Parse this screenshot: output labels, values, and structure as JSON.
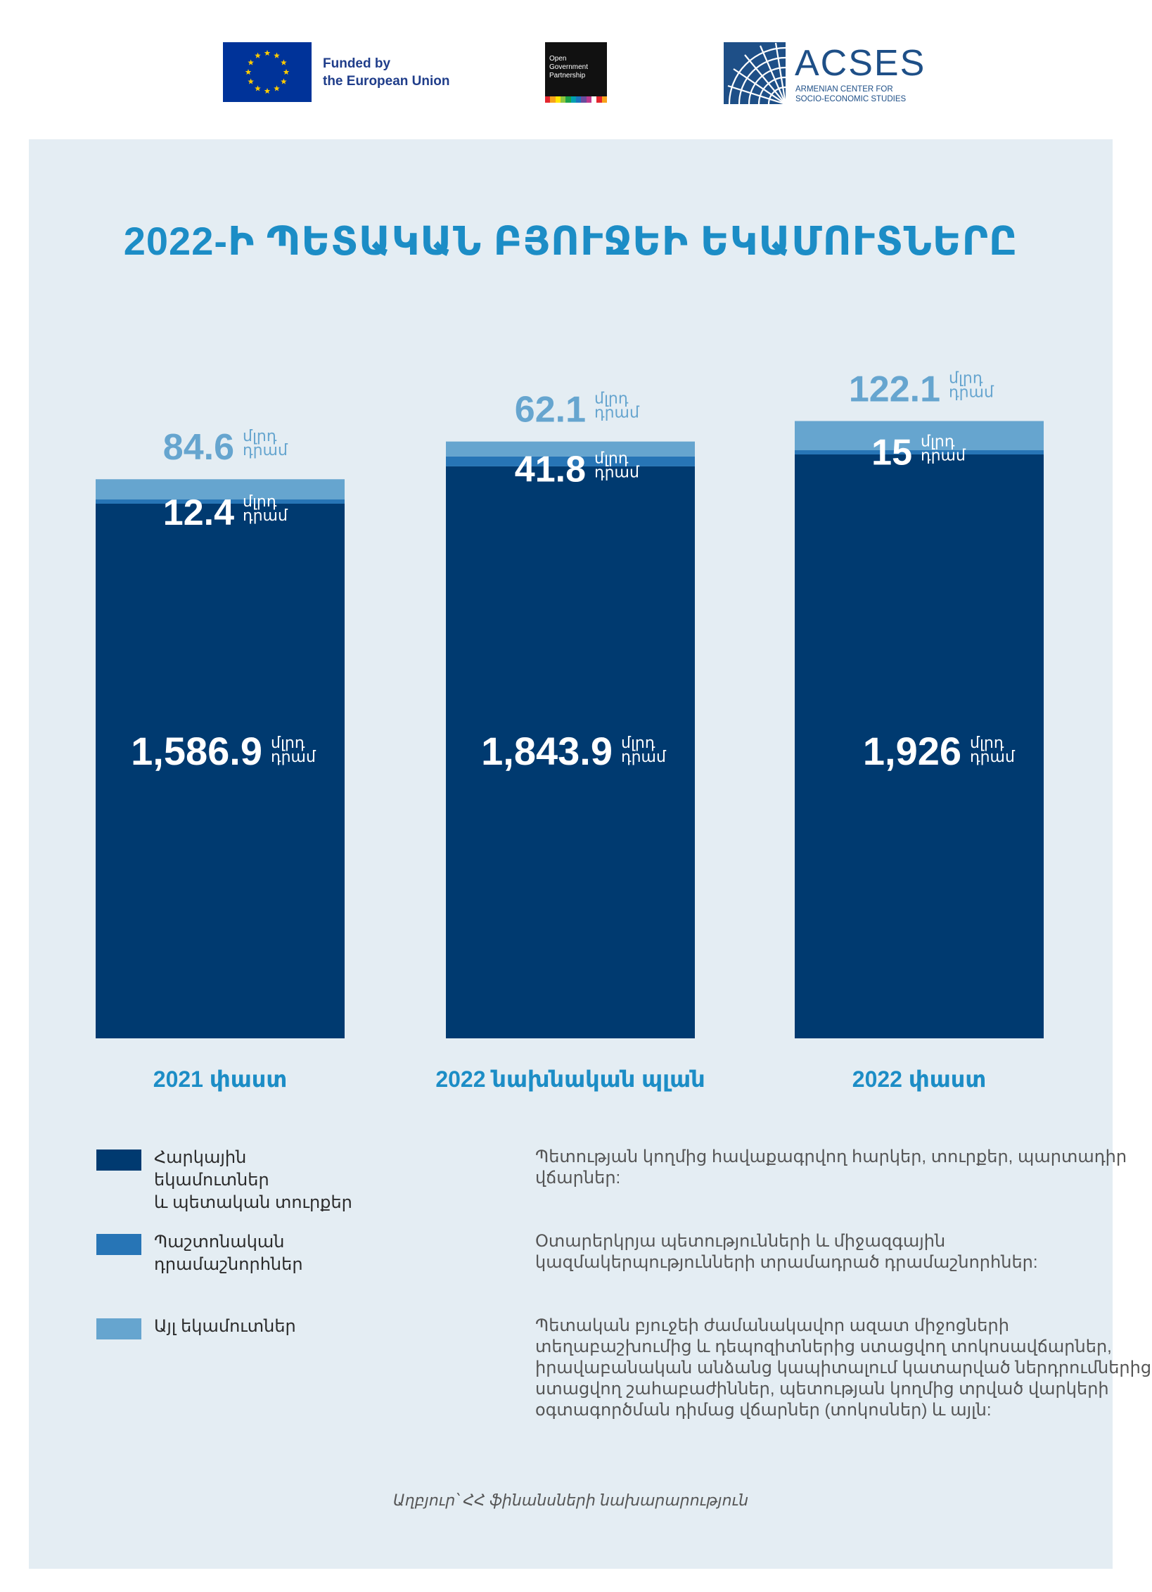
{
  "header": {
    "eu_line1": "Funded by",
    "eu_line2": "the European Union",
    "ogp_line1": "Open",
    "ogp_line2": "Government",
    "ogp_line3": "Partnership",
    "acses_name": "ACSES",
    "acses_sub1": "ARMENIAN CENTER FOR",
    "acses_sub2": "SOCIO-ECONOMIC STUDIES"
  },
  "colors": {
    "tax": "#003a70",
    "grants": "#2775b6",
    "other": "#66a5cf",
    "title": "#1c8dc6",
    "panel": "#e4edf3"
  },
  "chart_data": {
    "type": "bar",
    "stacked": true,
    "title": "2022-Ի ՊԵՏԱԿԱՆ ԲՅՈՒՋԵԻ ԵԿԱՄՈՒՏՆԵՐԸ",
    "unit": "մլրդ դրամ",
    "categories": [
      "2021 փաստ",
      "2022 նախնական պլան",
      "2022 փաստ"
    ],
    "series": [
      {
        "name": "Հարկային եկամուտներ և պետական տուրքեր",
        "values": [
          1586.9,
          1843.9,
          1926
        ],
        "labels": [
          "1,586.9",
          "1,843.9",
          "1,926"
        ]
      },
      {
        "name": "Պաշտոնական դրամաշնորհներ",
        "values": [
          12.4,
          41.8,
          15
        ],
        "labels": [
          "12.4",
          "41.8",
          "15"
        ]
      },
      {
        "name": "Այլ եկամուտներ",
        "values": [
          84.6,
          62.1,
          122.1
        ],
        "labels": [
          "84.6",
          "62.1",
          "122.1"
        ]
      }
    ],
    "legend_position": "bottom",
    "grid": false
  },
  "legend": [
    {
      "line1": "Հարկային եկամուտներ",
      "line2": "և պետական տուրքեր",
      "desc": "Պետության կողմից հավաքագրվող հարկեր, տուրքեր, պարտադիր վճարներ:"
    },
    {
      "line1": "Պաշտոնական",
      "line2": "դրամաշնորհներ",
      "desc": "Օտարերկրյա պետությունների և միջազգային կազմակերպությունների տրամադրած դրամաշնորհներ:"
    },
    {
      "line1": "Այլ եկամուտներ",
      "line2": "",
      "desc": "Պետական բյուջեի ժամանակավոր ազատ միջոցների տեղաբաշխումից և դեպոզիտներից ստացվող տոկոսավճարներ, իրավաբանական անձանց կապիտալում կատարված ներդրումներից ստացվող շահաբաժիններ, պետության կողմից տրված վարկերի օգտագործման դիմաց վճարներ (տոկոսներ) և այլն:"
    }
  ],
  "source": "Աղբյուր՝ ՀՀ ֆինանսների նախարարություն"
}
